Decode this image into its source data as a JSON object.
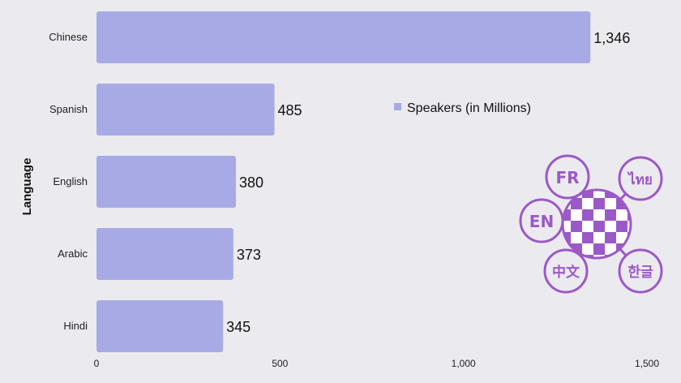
{
  "chart_data": {
    "type": "bar",
    "orientation": "horizontal",
    "categories": [
      "Chinese",
      "Spanish",
      "English",
      "Arabic",
      "Hindi"
    ],
    "series": [
      {
        "name": "Speakers (in Millions)",
        "values": [
          1346,
          485,
          380,
          373,
          345
        ]
      }
    ],
    "value_labels": [
      "1,346",
      "485",
      "380",
      "373",
      "345"
    ],
    "ylabel": "Language",
    "xlabel": "",
    "xlim": [
      0,
      1500
    ],
    "xticks": [
      "0",
      "500",
      "1,000",
      "1,500"
    ],
    "xtick_values": [
      0,
      500,
      1000,
      1500
    ],
    "legend_position": "right-middle",
    "grid": false,
    "bar_color": "#a8aae6"
  },
  "logo": {
    "name": "language-globe-logo",
    "bubbles": [
      "FR",
      "EN",
      "中文",
      "한글",
      "ไทย"
    ],
    "color": "#9b59c7"
  }
}
